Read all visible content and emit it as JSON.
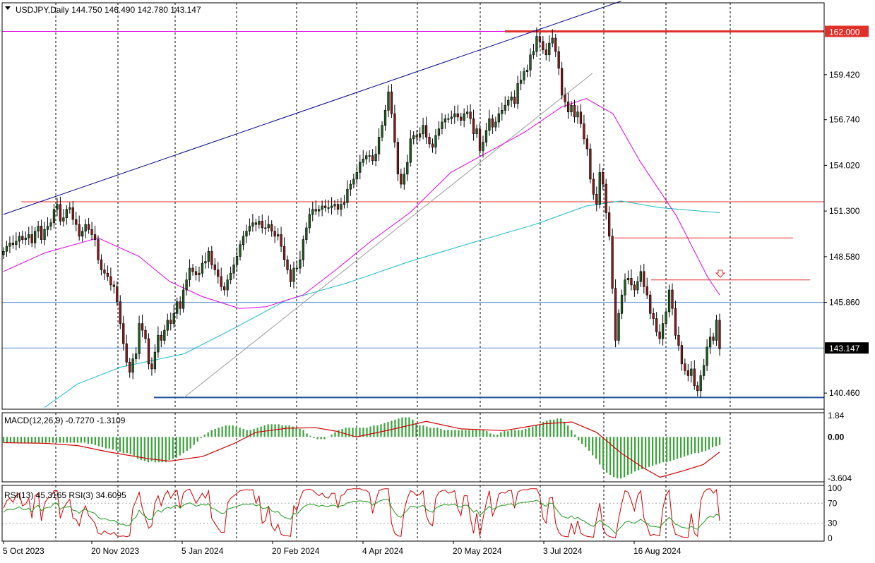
{
  "window": {
    "symbol_header": "USDJPY,Daily  144.750 146.490 142.780 143.147"
  },
  "colors": {
    "bg": "#ffffff",
    "grid": "#000000",
    "up": "#1f5f1f",
    "down": "#8b1a1a",
    "ma_magenta": "#e000e0",
    "ma_cyan": "#19b9c8",
    "trend_navy": "#00008b",
    "resistance_red": "#e0302a",
    "support_blue": "#1f4fa0",
    "macd_hist": "#3da33d",
    "macd_signal": "#cc0000",
    "rsi13": "#cc0000",
    "rsi3": "#1f9a1f",
    "price_box": "#000000"
  },
  "chart_data": [
    {
      "type": "candlestick",
      "title": "USDJPY,Daily",
      "ohlc_header": [
        144.75,
        146.49,
        142.78,
        143.147
      ],
      "x_range": [
        "2023-10-05",
        "2024-09-18"
      ],
      "y_range": [
        139.5,
        163.7
      ],
      "price_ticks": [
        "159.420",
        "156.740",
        "154.020",
        "151.300",
        "148.580",
        "145.860",
        "140.460"
      ],
      "current_price_label": "143.147",
      "current_price": 143.147,
      "level_label": "162.000",
      "level_value": 162.0,
      "date_labels": [
        "5 Oct 2023",
        "20 Nov 2023",
        "5 Jan 2024",
        "20 Feb 2024",
        "4 Apr 2024",
        "20 May 2024",
        "3 Jul 2024",
        "16 Aug 2024"
      ],
      "horizontal_levels": [
        {
          "value": 162.0,
          "color": "red"
        },
        {
          "value": 151.85,
          "color": "red"
        },
        {
          "value": 149.7,
          "color": "red"
        },
        {
          "value": 147.2,
          "color": "red"
        },
        {
          "value": 145.86,
          "color": "blue"
        },
        {
          "value": 140.2,
          "color": "blue"
        }
      ],
      "closes": [
        148.9,
        149.2,
        149.4,
        149.3,
        149.5,
        149.8,
        149.6,
        149.7,
        149.9,
        149.4,
        150.1,
        150.4,
        149.6,
        150.2,
        150.4,
        150.6,
        151.4,
        151.7,
        150.7,
        150.9,
        151.4,
        151.5,
        150.8,
        150.5,
        149.8,
        150.1,
        150.5,
        150.2,
        149.9,
        149.6,
        148.4,
        147.8,
        147.6,
        147.4,
        146.9,
        146.8,
        145.9,
        144.6,
        143.4,
        142.3,
        141.7,
        142.5,
        142.8,
        144.6,
        144.2,
        143.7,
        142.2,
        141.9,
        142.9,
        143.9,
        143.6,
        144.2,
        144.8,
        144.6,
        145.2,
        145.9,
        145.5,
        146.6,
        147.2,
        147.9,
        147.7,
        147.5,
        147.6,
        148.2,
        148.3,
        148.9,
        148.1,
        147.8,
        147.4,
        146.8,
        146.6,
        147.2,
        147.6,
        148.1,
        148.6,
        149.3,
        149.8,
        150.1,
        150.4,
        150.6,
        150.5,
        150.7,
        150.3,
        150.3,
        150.5,
        150.1,
        149.8,
        149.9,
        149.2,
        148.4,
        147.8,
        147.1,
        147.9,
        147.9,
        148.4,
        149.6,
        150.3,
        151.1,
        151.4,
        151.3,
        151.4,
        151.6,
        151.5,
        151.5,
        151.6,
        151.7,
        151.4,
        151.7,
        151.8,
        152.6,
        152.9,
        153.2,
        153.6,
        154.2,
        154.4,
        154.6,
        154.6,
        154.3,
        154.7,
        155.7,
        156.4,
        157.3,
        158.4,
        157.1,
        155.4,
        153.5,
        152.9,
        153.5,
        154.2,
        155.6,
        155.8,
        155.7,
        155.9,
        156.4,
        155.7,
        155.3,
        155.1,
        155.8,
        156.2,
        156.6,
        156.8,
        156.8,
        156.9,
        157.1,
        156.9,
        156.7,
        157.1,
        157.2,
        156.8,
        155.9,
        156.2,
        154.9,
        155.4,
        156.1,
        156.8,
        156.3,
        156.6,
        157.1,
        157.3,
        157.6,
        157.9,
        158.1,
        157.7,
        158.9,
        159.1,
        159.6,
        159.7,
        160.6,
        160.8,
        161.7,
        161.4,
        160.9,
        160.6,
        161.3,
        161.6,
        160.8,
        159.8,
        158.2,
        157.8,
        157.2,
        157.6,
        156.9,
        157.2,
        156.5,
        155.6,
        155.0,
        153.2,
        152.3,
        151.7,
        153.6,
        152.9,
        151.2,
        149.8,
        146.7,
        143.6,
        145.2,
        146.3,
        147.2,
        147.3,
        146.9,
        146.6,
        147.1,
        147.7,
        146.8,
        146.3,
        145.2,
        144.9,
        144.1,
        143.7,
        144.6,
        145.3,
        146.6,
        145.5,
        143.9,
        143.3,
        142.2,
        141.8,
        141.5,
        141.9,
        140.9,
        140.6,
        141.5,
        142.1,
        143.2,
        143.8,
        143.6,
        144.8,
        143.1
      ],
      "ma_magenta": [
        {
          "x": "2023-10-05",
          "y": 147.7
        },
        {
          "x": "2023-10-25",
          "y": 148.8
        },
        {
          "x": "2023-11-20",
          "y": 149.7
        },
        {
          "x": "2023-12-10",
          "y": 148.6
        },
        {
          "x": "2023-12-25",
          "y": 147.1
        },
        {
          "x": "2024-01-10",
          "y": 146.2
        },
        {
          "x": "2024-01-28",
          "y": 145.5
        },
        {
          "x": "2024-02-10",
          "y": 145.6
        },
        {
          "x": "2024-02-28",
          "y": 146.3
        },
        {
          "x": "2024-03-15",
          "y": 147.8
        },
        {
          "x": "2024-04-01",
          "y": 149.5
        },
        {
          "x": "2024-04-20",
          "y": 151.2
        },
        {
          "x": "2024-05-10",
          "y": 153.6
        },
        {
          "x": "2024-05-28",
          "y": 154.8
        },
        {
          "x": "2024-06-15",
          "y": 156.0
        },
        {
          "x": "2024-07-03",
          "y": 157.5
        },
        {
          "x": "2024-07-15",
          "y": 158.0
        },
        {
          "x": "2024-07-28",
          "y": 157.1
        },
        {
          "x": "2024-08-10",
          "y": 154.3
        },
        {
          "x": "2024-08-28",
          "y": 151.0
        },
        {
          "x": "2024-09-12",
          "y": 147.4
        },
        {
          "x": "2024-09-18",
          "y": 146.3
        }
      ],
      "ma_cyan": [
        {
          "x": "2023-10-25",
          "y": 139.6
        },
        {
          "x": "2023-11-10",
          "y": 141.0
        },
        {
          "x": "2023-12-01",
          "y": 142.0
        },
        {
          "x": "2024-01-01",
          "y": 142.8
        },
        {
          "x": "2024-01-25",
          "y": 144.3
        },
        {
          "x": "2024-02-20",
          "y": 146.0
        },
        {
          "x": "2024-03-20",
          "y": 147.0
        },
        {
          "x": "2024-04-20",
          "y": 148.3
        },
        {
          "x": "2024-05-20",
          "y": 149.4
        },
        {
          "x": "2024-06-20",
          "y": 150.5
        },
        {
          "x": "2024-07-15",
          "y": 151.6
        },
        {
          "x": "2024-08-01",
          "y": 151.9
        },
        {
          "x": "2024-08-20",
          "y": 151.5
        },
        {
          "x": "2024-09-18",
          "y": 151.2
        }
      ],
      "trend_navy": [
        {
          "x": "2023-10-05",
          "y": 151.1
        },
        {
          "x": "2024-08-01",
          "y": 163.8
        }
      ],
      "trend_grey": [
        {
          "x": "2024-01-01",
          "y": 140.2
        },
        {
          "x": "2024-07-18",
          "y": 159.5
        }
      ]
    },
    {
      "type": "macd",
      "title_label": "MACD(12,26,9) -0.7270 -1.3109",
      "params": "12,26,9",
      "main_value": -0.727,
      "signal_value": -1.3109,
      "y_ticks": [
        "1.84",
        "0.00",
        "-3.604"
      ],
      "y_range": [
        -3.9,
        2.1
      ],
      "histogram": [
        -0.5,
        -0.5,
        -0.5,
        -0.5,
        -0.5,
        -0.5,
        -0.5,
        -0.5,
        -0.5,
        -0.5,
        -0.5,
        -0.5,
        -0.5,
        -0.5,
        -0.5,
        -0.5,
        -0.5,
        -0.5,
        -0.5,
        -0.5,
        -0.5,
        -0.5,
        -0.5,
        -0.5,
        -0.6,
        -0.6,
        -0.7,
        -0.8,
        -0.9,
        -1.0,
        -1.0,
        -1.1,
        -1.2,
        -1.3,
        -1.4,
        -1.4,
        -1.5,
        -1.7,
        -1.9,
        -2.0,
        -2.1,
        -2.2,
        -2.1,
        -2.2,
        -2.2,
        -2.2,
        -2.2,
        -2.0,
        -1.9,
        -1.8,
        -1.6,
        -1.4,
        -1.2,
        -1.0,
        -0.7,
        -0.4,
        -0.1,
        0.2,
        0.4,
        0.6,
        0.7,
        0.8,
        0.9,
        1.0,
        1.0,
        1.0,
        0.9,
        0.8,
        0.7,
        0.6,
        0.6,
        0.7,
        0.8,
        0.9,
        1.0,
        1.1,
        1.1,
        1.1,
        1.1,
        1.0,
        1.0,
        1.0,
        0.9,
        0.8,
        0.7,
        0.6,
        0.3,
        0.1,
        -0.1,
        -0.2,
        -0.2,
        -0.2,
        0.0,
        0.2,
        0.4,
        0.6,
        0.7,
        0.8,
        0.8,
        0.8,
        0.8,
        0.8,
        0.8,
        0.8,
        0.9,
        1.0,
        1.0,
        1.1,
        1.2,
        1.3,
        1.4,
        1.5,
        1.6,
        1.7,
        1.7,
        1.7,
        1.5,
        1.2,
        1.0,
        1.0,
        0.9,
        0.8,
        0.8,
        0.8,
        0.7,
        0.6,
        0.6,
        0.6,
        0.6,
        0.6,
        0.6,
        0.6,
        0.6,
        0.6,
        0.6,
        0.6,
        0.6,
        0.5,
        0.3,
        0.2,
        0.2,
        0.4,
        0.5,
        0.5,
        0.6,
        0.6,
        0.6,
        0.6,
        0.7,
        0.8,
        0.9,
        1.0,
        1.1,
        1.3,
        1.4,
        1.5,
        1.5,
        1.6,
        1.6,
        1.3,
        1.0,
        0.6,
        0.2,
        -0.3,
        -0.6,
        -0.9,
        -1.2,
        -1.6,
        -1.9,
        -2.4,
        -2.8,
        -3.1,
        -3.3,
        -3.5,
        -3.6,
        -3.6,
        -3.5,
        -3.3,
        -3.2,
        -3.0,
        -2.9,
        -2.8,
        -2.7,
        -2.6,
        -2.5,
        -2.4,
        -2.3,
        -2.2,
        -2.2,
        -2.1,
        -2.0,
        -1.9,
        -1.8,
        -1.7,
        -1.6,
        -1.5,
        -1.4,
        -1.4,
        -1.3,
        -1.2,
        -1.1,
        -0.9,
        -0.8,
        -0.7
      ],
      "signal_line": [
        {
          "x": "2023-10-05",
          "y": -0.5
        },
        {
          "x": "2023-10-25",
          "y": -0.55
        },
        {
          "x": "2023-11-10",
          "y": -0.75
        },
        {
          "x": "2023-11-25",
          "y": -1.3
        },
        {
          "x": "2023-12-15",
          "y": -1.9
        },
        {
          "x": "2023-12-25",
          "y": -2.1
        },
        {
          "x": "2024-01-10",
          "y": -1.7
        },
        {
          "x": "2024-01-25",
          "y": -0.6
        },
        {
          "x": "2024-02-05",
          "y": 0.4
        },
        {
          "x": "2024-02-20",
          "y": 0.75
        },
        {
          "x": "2024-03-05",
          "y": 0.8
        },
        {
          "x": "2024-03-15",
          "y": 0.5
        },
        {
          "x": "2024-03-25",
          "y": 0.0
        },
        {
          "x": "2024-04-10",
          "y": 0.6
        },
        {
          "x": "2024-04-28",
          "y": 1.35
        },
        {
          "x": "2024-05-15",
          "y": 0.7
        },
        {
          "x": "2024-06-05",
          "y": 0.55
        },
        {
          "x": "2024-06-25",
          "y": 1.15
        },
        {
          "x": "2024-07-08",
          "y": 1.3
        },
        {
          "x": "2024-07-20",
          "y": 0.4
        },
        {
          "x": "2024-08-01",
          "y": -1.4
        },
        {
          "x": "2024-08-12",
          "y": -2.7
        },
        {
          "x": "2024-08-20",
          "y": -3.5
        },
        {
          "x": "2024-09-01",
          "y": -2.9
        },
        {
          "x": "2024-09-10",
          "y": -2.4
        },
        {
          "x": "2024-09-18",
          "y": -1.31
        }
      ]
    },
    {
      "type": "rsi",
      "title_label": "RSI(13) 45.3165  RSI(3) 34.6095",
      "rsi13_value": 45.3165,
      "rsi3_value": 34.6095,
      "y_ticks": [
        "100",
        "70",
        "30",
        "0"
      ],
      "y_range": [
        0,
        100
      ],
      "rsi13": [
        52,
        57,
        58,
        57,
        60,
        63,
        58,
        57,
        60,
        53,
        62,
        66,
        55,
        60,
        62,
        62,
        70,
        70,
        58,
        62,
        62,
        64,
        56,
        55,
        50,
        56,
        58,
        54,
        52,
        50,
        42,
        38,
        40,
        37,
        35,
        36,
        32,
        28,
        28,
        25,
        26,
        38,
        42,
        56,
        48,
        44,
        37,
        38,
        50,
        56,
        52,
        58,
        62,
        60,
        64,
        66,
        60,
        66,
        69,
        71,
        68,
        64,
        66,
        68,
        66,
        69,
        60,
        58,
        54,
        50,
        50,
        58,
        60,
        62,
        64,
        66,
        68,
        68,
        68,
        69,
        65,
        67,
        60,
        60,
        63,
        55,
        52,
        54,
        46,
        42,
        40,
        38,
        50,
        48,
        55,
        62,
        66,
        68,
        68,
        66,
        64,
        66,
        64,
        64,
        66,
        66,
        62,
        65,
        66,
        71,
        72,
        74,
        74,
        75,
        74,
        74,
        72,
        66,
        70,
        74,
        76,
        78,
        78,
        62,
        52,
        44,
        42,
        50,
        56,
        64,
        64,
        62,
        63,
        66,
        58,
        54,
        52,
        60,
        64,
        66,
        68,
        66,
        67,
        68,
        64,
        62,
        66,
        66,
        60,
        52,
        56,
        46,
        52,
        58,
        64,
        58,
        60,
        64,
        66,
        66,
        68,
        69,
        64,
        70,
        71,
        72,
        72,
        74,
        74,
        76,
        73,
        67,
        64,
        70,
        70,
        60,
        52,
        44,
        42,
        40,
        45,
        39,
        42,
        37,
        35,
        30,
        26,
        24,
        30,
        36,
        31,
        26,
        22,
        16,
        10,
        18,
        24,
        32,
        34,
        32,
        30,
        34,
        38,
        33,
        30,
        24,
        24,
        23,
        22,
        30,
        35,
        42,
        36,
        28,
        26,
        22,
        21,
        20,
        24,
        20,
        18,
        26,
        32,
        40,
        44,
        42,
        48,
        45
      ],
      "rsi3": [
        60,
        75,
        80,
        72,
        85,
        90,
        65,
        68,
        80,
        40,
        85,
        90,
        35,
        70,
        80,
        82,
        95,
        95,
        40,
        60,
        70,
        78,
        40,
        38,
        25,
        52,
        65,
        45,
        38,
        30,
        10,
        8,
        15,
        10,
        8,
        12,
        5,
        4,
        5,
        3,
        5,
        60,
        75,
        92,
        60,
        40,
        20,
        25,
        70,
        85,
        65,
        85,
        95,
        80,
        90,
        96,
        60,
        90,
        96,
        98,
        85,
        70,
        80,
        90,
        80,
        95,
        40,
        30,
        20,
        12,
        12,
        70,
        80,
        85,
        90,
        95,
        96,
        97,
        96,
        97,
        70,
        85,
        30,
        35,
        65,
        25,
        15,
        28,
        8,
        5,
        5,
        4,
        65,
        55,
        80,
        95,
        97,
        98,
        96,
        90,
        85,
        90,
        82,
        80,
        90,
        90,
        60,
        85,
        88,
        98,
        98,
        99,
        99,
        99,
        96,
        96,
        90,
        50,
        75,
        95,
        98,
        99,
        99,
        30,
        10,
        5,
        4,
        55,
        80,
        95,
        92,
        85,
        88,
        95,
        45,
        30,
        25,
        80,
        92,
        95,
        96,
        90,
        92,
        95,
        60,
        45,
        85,
        85,
        40,
        10,
        50,
        5,
        40,
        70,
        95,
        45,
        60,
        88,
        92,
        90,
        95,
        96,
        60,
        92,
        96,
        97,
        97,
        99,
        99,
        99,
        85,
        40,
        30,
        80,
        82,
        30,
        12,
        5,
        4,
        3,
        30,
        8,
        35,
        10,
        6,
        4,
        3,
        2,
        40,
        70,
        20,
        8,
        4,
        2,
        1,
        40,
        70,
        95,
        92,
        75,
        55,
        85,
        95,
        40,
        25,
        5,
        8,
        6,
        5,
        60,
        85,
        96,
        30,
        8,
        6,
        3,
        2,
        2,
        50,
        10,
        4,
        75,
        92,
        98,
        99,
        90,
        97,
        35
      ]
    }
  ]
}
